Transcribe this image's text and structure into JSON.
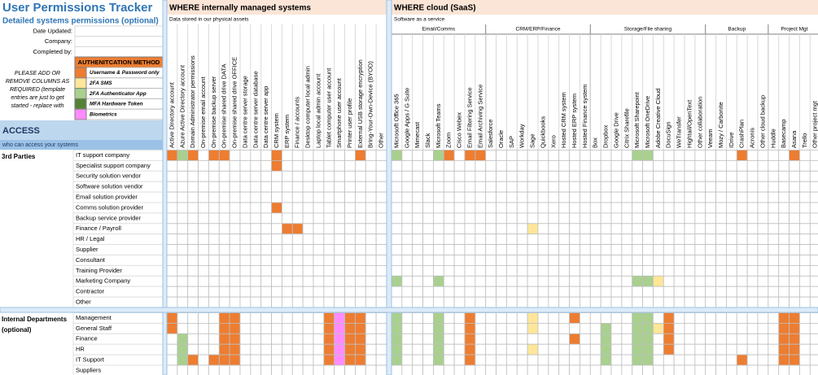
{
  "title": "User Permissions Tracker",
  "subtitle": "Detailed systems permissions (optional)",
  "fields": [
    "Date Updated:",
    "Company:",
    "Completed by:"
  ],
  "note": "PLEASE ADD OR REMOVE COLUMNS AS REQUIRED (template entries are just to get started - replace with vendor names)",
  "legend": {
    "title": "AUTHENITCATION METHOD",
    "items": [
      {
        "label": "Username & Password only",
        "color": "#ED7D31"
      },
      {
        "label": "2FA SMS",
        "color": "#FFE699"
      },
      {
        "label": "2FA Authenticator App",
        "color": "#A9D08E"
      },
      {
        "label": "MFA Hardware Token",
        "color": "#548235"
      },
      {
        "label": "Biometrics",
        "color": "#FF8CFF"
      }
    ]
  },
  "access": {
    "title": "ACCESS",
    "subtitle": "who can access your systems"
  },
  "internal": {
    "title": "WHERE internally managed systems",
    "subtitle": "Data stored in our physical assets",
    "columns": [
      "Active Directory account",
      "Azure Active Directory account",
      "Domain Administrator permissions",
      "On-premise email account",
      "On-premise backup server",
      "On-premise shared drive DATA",
      "On-premise shared drive OFFICE",
      "Data centre server storage",
      "Data centre server database",
      "Data centre server app",
      "CRM system",
      "ERP system",
      "Finance / accounts",
      "Desktop computer local admin",
      "Laptop local admin account",
      "Tablet computer user account",
      "Smartphone user account",
      "Printer user profile",
      "External USB storage encryption",
      "Bring-Your-Own-Device (BYOD)",
      "Other"
    ]
  },
  "cloud": {
    "title": "WHERE cloud (SaaS)",
    "subtitle": "Software as a service",
    "groups": [
      {
        "label": "Email/Comms",
        "columns": [
          "Microsoft Office 365",
          "Google Apps / G Suite",
          "Mimecast",
          "Slack",
          "Microsoft Teams",
          "Zoom",
          "Cisco Webex",
          "Email Filtering Service",
          "Email Archiving Service"
        ]
      },
      {
        "label": "CRM/ERP/Finance",
        "columns": [
          "Salesforce",
          "Oracle",
          "SAP",
          "Workday",
          "Sage",
          "Quickbooks",
          "Xero",
          "Hosted CRM system",
          "Hosted ERP system",
          "Hosted Finance system"
        ]
      },
      {
        "label": "Storage/File sharing",
        "columns": [
          "Box",
          "Dropbox",
          "Google Drive",
          "Citrix Sharefile",
          "Microsoft Sharepoint",
          "Microsoft OneDrive",
          "Adobe Creative Cloud",
          "DocuSign",
          "WeTransfer",
          "Hightail/OpenText",
          "Other collaboration"
        ]
      },
      {
        "label": "Backup",
        "columns": [
          "Veeam",
          "Mozy / Carbonite",
          "IDrive",
          "CrashPlan",
          "Acronis",
          "Other cloud backup"
        ]
      },
      {
        "label": "Project Mgt",
        "columns": [
          "Huddle",
          "Basecamp",
          "Asana",
          "Trello",
          "Other project mgt"
        ]
      }
    ]
  },
  "row_groups": [
    {
      "label": "3rd Parties",
      "rows": [
        {
          "label": "IT support company",
          "internal": "131011000010000000100",
          "cloud": "30003101100000000000000330000000010000100"
        },
        {
          "label": "Specialist support company",
          "internal": "000000000010000000000",
          "cloud": "00000000000000000000000000000000000000000"
        },
        {
          "label": "Security solution vendor",
          "internal": "000000000000000000000",
          "cloud": "00000000000000000000000000000000000000000"
        },
        {
          "label": "Software solution vendor",
          "internal": "000000000000000000000",
          "cloud": "00000000000000000000000000000000000000000"
        },
        {
          "label": "Email solution provider",
          "internal": "000000000000000000000",
          "cloud": "00000000000000000000000000000000000000000"
        },
        {
          "label": "Comms solution provider",
          "internal": "000000000010000000000",
          "cloud": "00000000000000000000000000000000000000000"
        },
        {
          "label": "Backup service provider",
          "internal": "000000000000000000000",
          "cloud": "00000000000000000000000000000000000000000"
        },
        {
          "label": "Finance / Payroll",
          "internal": "000000000001100000000",
          "cloud": "00000000000002000000000000000000000000000"
        },
        {
          "label": "HR / Legal",
          "internal": "000000000000000000000",
          "cloud": "00000000000000000000000000000000000000000"
        },
        {
          "label": "Supplier",
          "internal": "000000000000000000000",
          "cloud": "00000000000000000000000000000000000000000"
        },
        {
          "label": "Consultant",
          "internal": "000000000000000000000",
          "cloud": "00000000000000000000000000000000000000000"
        },
        {
          "label": "Training Provider",
          "internal": "000000000000000000000",
          "cloud": "00000000000000000000000000000000000000000"
        },
        {
          "label": "Marketing Company",
          "internal": "000000000000000000000",
          "cloud": "30003000000000000000000332000000000000000"
        },
        {
          "label": "Contractor",
          "internal": "000000000000000000000",
          "cloud": "00000000000000000000000000000000000000000"
        },
        {
          "label": "Other",
          "internal": "000000000000000000000",
          "cloud": "00000000000000000000000000000000000000000"
        }
      ]
    },
    {
      "label": "Internal Departments (optional)",
      "rows": [
        {
          "label": "Management",
          "internal": "100001100000000151100",
          "cloud": "30003001000002000100000330100000000001100"
        },
        {
          "label": "General Staff",
          "internal": "100001100000000151100",
          "cloud": "30003001000002000000300332100000000001100"
        },
        {
          "label": "Finance",
          "internal": "030001100000000151100",
          "cloud": "30003001000000000100300330100000000001100"
        },
        {
          "label": "HR",
          "internal": "030001100000000151100",
          "cloud": "30003001000002000000300330100000000001100"
        },
        {
          "label": "IT Support",
          "internal": "031011100000000151100",
          "cloud": "30003001000000000000300330000000010001100"
        },
        {
          "label": "Suppliers",
          "internal": "000000000000000000000",
          "cloud": "00000000000000000000000000000000000000000"
        }
      ]
    }
  ]
}
